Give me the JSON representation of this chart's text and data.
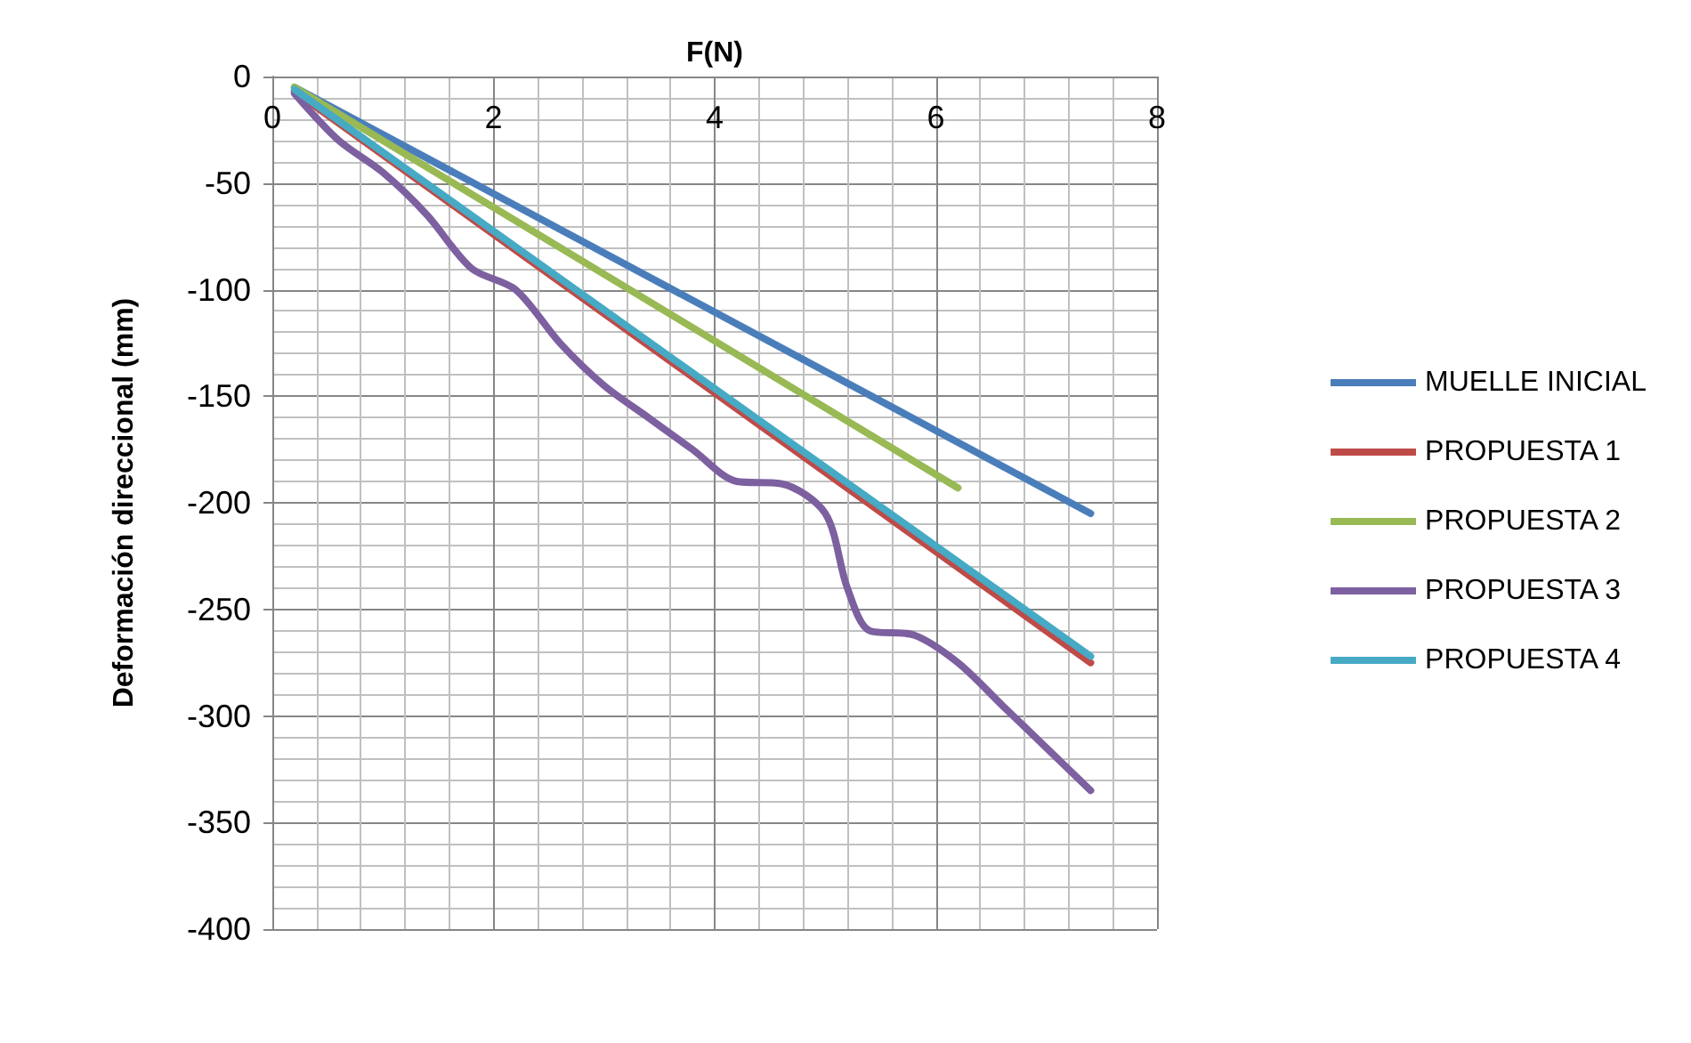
{
  "chart_data": {
    "type": "line",
    "xlabel": "F(N)",
    "ylabel": "Deformación direccional (mm)",
    "xlim": [
      0,
      8
    ],
    "xticks": [
      0,
      2,
      4,
      6,
      8
    ],
    "ylim": [
      -400,
      0
    ],
    "yticks": [
      -400,
      -350,
      -300,
      -250,
      -200,
      -150,
      -100,
      -50,
      0
    ],
    "grid": true,
    "legend": "right",
    "marker": "none",
    "line_style": "solid",
    "series": [
      {
        "name": "MUELLE INICIAL",
        "color": "#4a7ebb",
        "x": [
          0.2,
          7.4
        ],
        "values": [
          -5,
          -205
        ]
      },
      {
        "name": "PROPUESTA 1",
        "color": "#be4b48",
        "x": [
          0.2,
          7.4
        ],
        "values": [
          -7,
          -275
        ]
      },
      {
        "name": "PROPUESTA 2",
        "color": "#98b954",
        "x": [
          0.2,
          6.2
        ],
        "values": [
          -5,
          -193
        ]
      },
      {
        "name": "PROPUESTA 3",
        "color": "#7d60a0",
        "x": [
          0.2,
          0.6,
          1.0,
          1.4,
          1.8,
          2.2,
          2.6,
          3.0,
          3.4,
          3.8,
          4.2,
          4.6,
          5.0,
          5.2,
          5.4,
          5.8,
          6.2,
          6.6,
          7.0,
          7.4
        ],
        "values": [
          -8,
          -30,
          -45,
          -65,
          -90,
          -100,
          -125,
          -145,
          -160,
          -175,
          -190,
          -191,
          -205,
          -240,
          -260,
          -262,
          -275,
          -295,
          -315,
          -335
        ]
      },
      {
        "name": "PROPUESTA 4",
        "color": "#46aac5",
        "x": [
          0.2,
          7.4
        ],
        "values": [
          -6,
          -272
        ]
      }
    ]
  }
}
